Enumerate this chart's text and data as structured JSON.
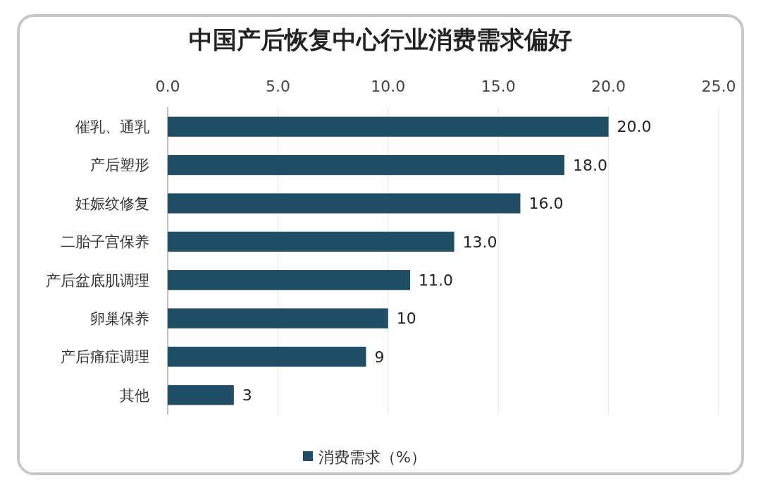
{
  "chart_data": {
    "type": "bar",
    "orientation": "horizontal",
    "title": "中国产后恢复中心行业消费需求偏好",
    "categories": [
      "催乳、通乳",
      "产后塑形",
      "妊娠纹修复",
      "二胎子宫保养",
      "产后盆底肌调理",
      "卵巢保养",
      "产后痛症调理",
      "其他"
    ],
    "series": [
      {
        "name": "消费需求（%）",
        "color": "#1f4e66",
        "values": [
          20,
          18,
          16,
          13,
          11,
          10,
          9,
          3
        ],
        "value_labels": [
          "20.0",
          "18.0",
          "16.0",
          "13.0",
          "11.0",
          "10",
          "9",
          "3"
        ]
      }
    ],
    "xlim": [
      0,
      25
    ],
    "xticks": [
      {
        "value": 0,
        "label": "0.0"
      },
      {
        "value": 5,
        "label": "5.0"
      },
      {
        "value": 10,
        "label": "10.0"
      },
      {
        "value": 15,
        "label": "15.0"
      },
      {
        "value": 20,
        "label": "20.0"
      },
      {
        "value": 25,
        "label": "25.0"
      }
    ],
    "grid": "x",
    "legend": "bottom"
  }
}
